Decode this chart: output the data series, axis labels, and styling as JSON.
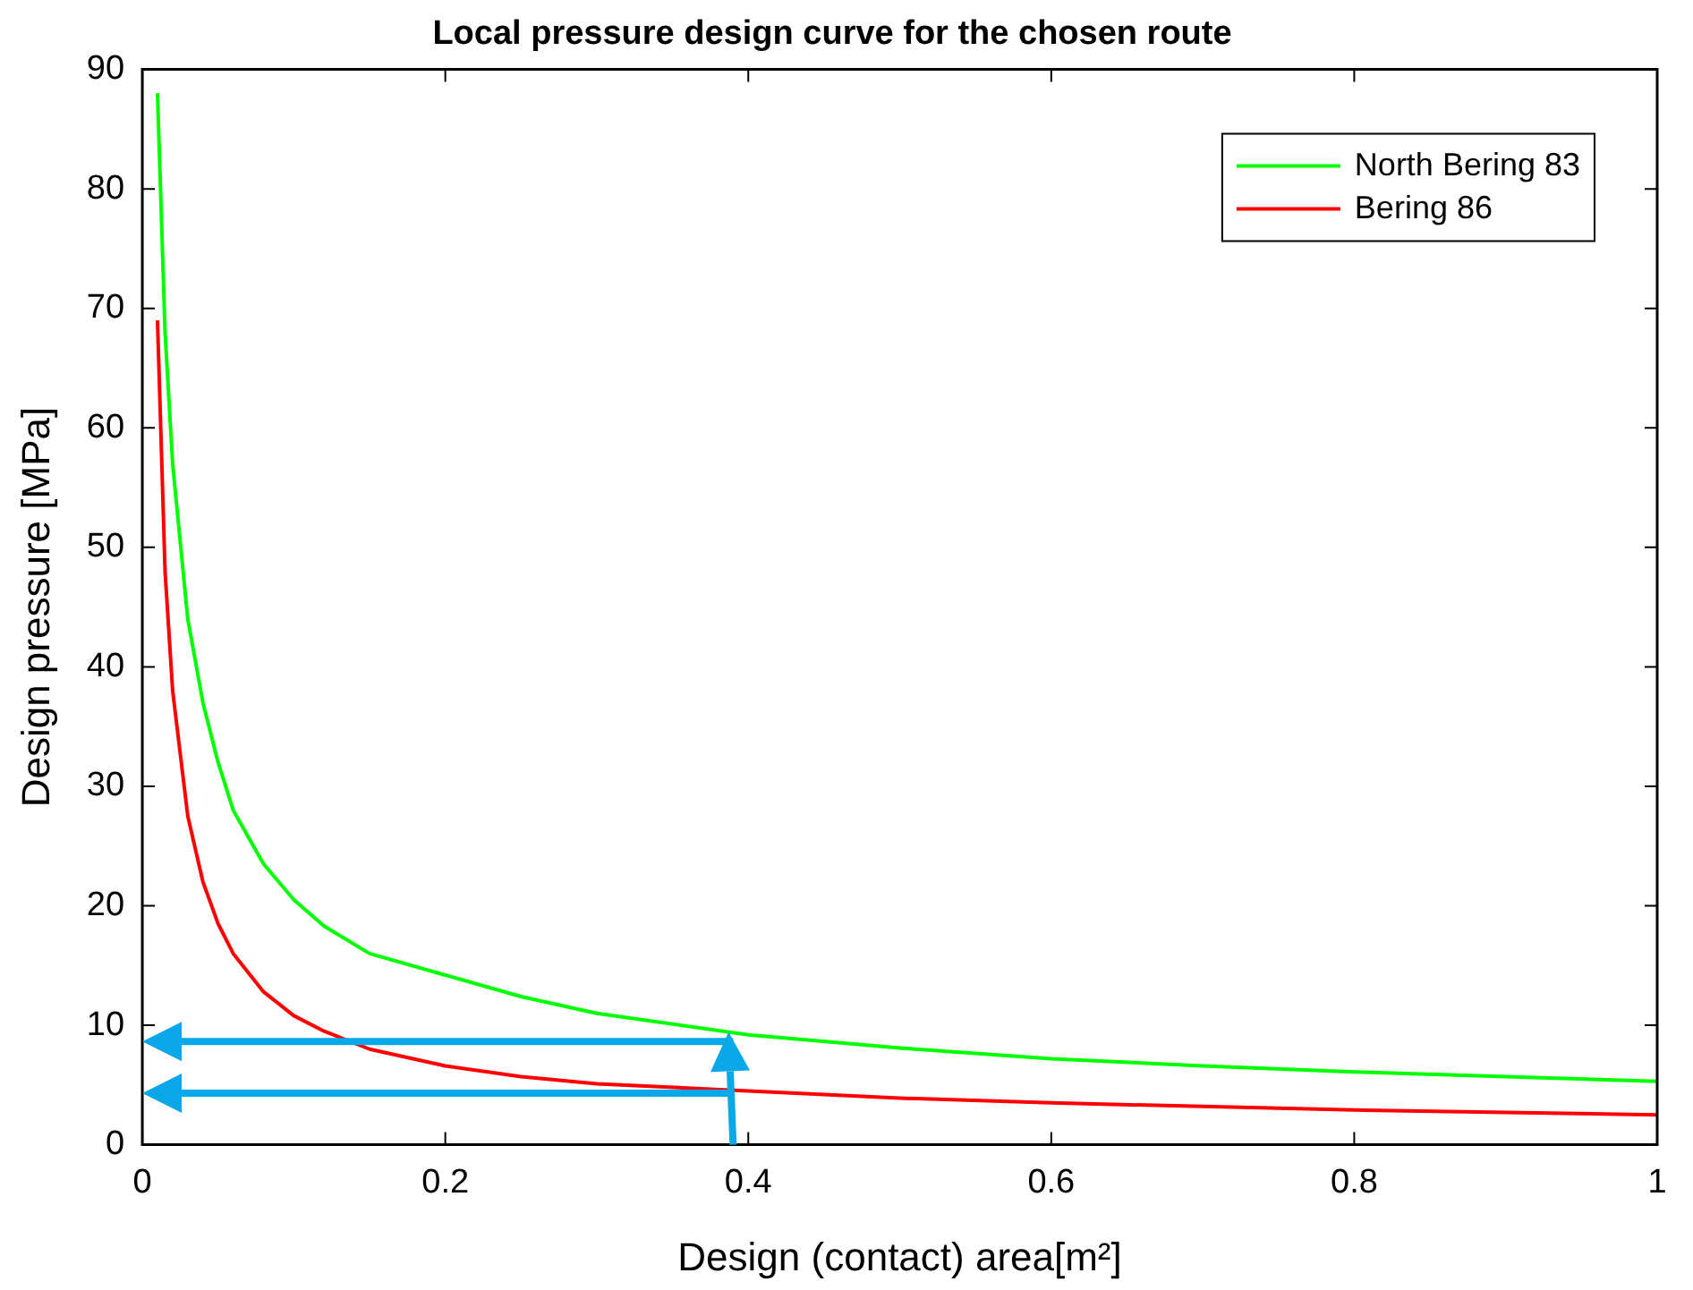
{
  "chart_data": {
    "type": "line",
    "title": "Local pressure design curve for the chosen route",
    "xlabel": "Design (contact) area[m²]",
    "ylabel": "Design pressure [MPa]",
    "x": [
      0.01,
      0.015,
      0.02,
      0.03,
      0.04,
      0.05,
      0.06,
      0.08,
      0.1,
      0.12,
      0.15,
      0.2,
      0.25,
      0.3,
      0.4,
      0.5,
      0.6,
      0.7,
      0.8,
      0.9,
      1.0
    ],
    "series": [
      {
        "name": "North Bering 83",
        "color": "#00ff00",
        "values": [
          88,
          68,
          57,
          44,
          37,
          32,
          28,
          23.5,
          20.5,
          18.3,
          16,
          14.2,
          12.4,
          11,
          9.2,
          8.1,
          7.2,
          6.6,
          6.1,
          5.7,
          5.3
        ]
      },
      {
        "name": "Bering 86",
        "color": "#ff0000",
        "values": [
          69,
          48,
          38,
          27.5,
          22,
          18.5,
          16,
          12.8,
          10.8,
          9.5,
          8,
          6.6,
          5.7,
          5.1,
          4.5,
          3.9,
          3.5,
          3.2,
          2.9,
          2.7,
          2.5
        ]
      }
    ],
    "xlim": [
      0,
      1
    ],
    "xticks": [
      0,
      0.2,
      0.4,
      0.6,
      0.8,
      1
    ],
    "ylim": [
      0,
      90
    ],
    "yticks": [
      0,
      10,
      20,
      30,
      40,
      50,
      60,
      70,
      80,
      90
    ],
    "grid": false,
    "legend": "top right",
    "marker": "none",
    "line_style": "solid"
  }
}
